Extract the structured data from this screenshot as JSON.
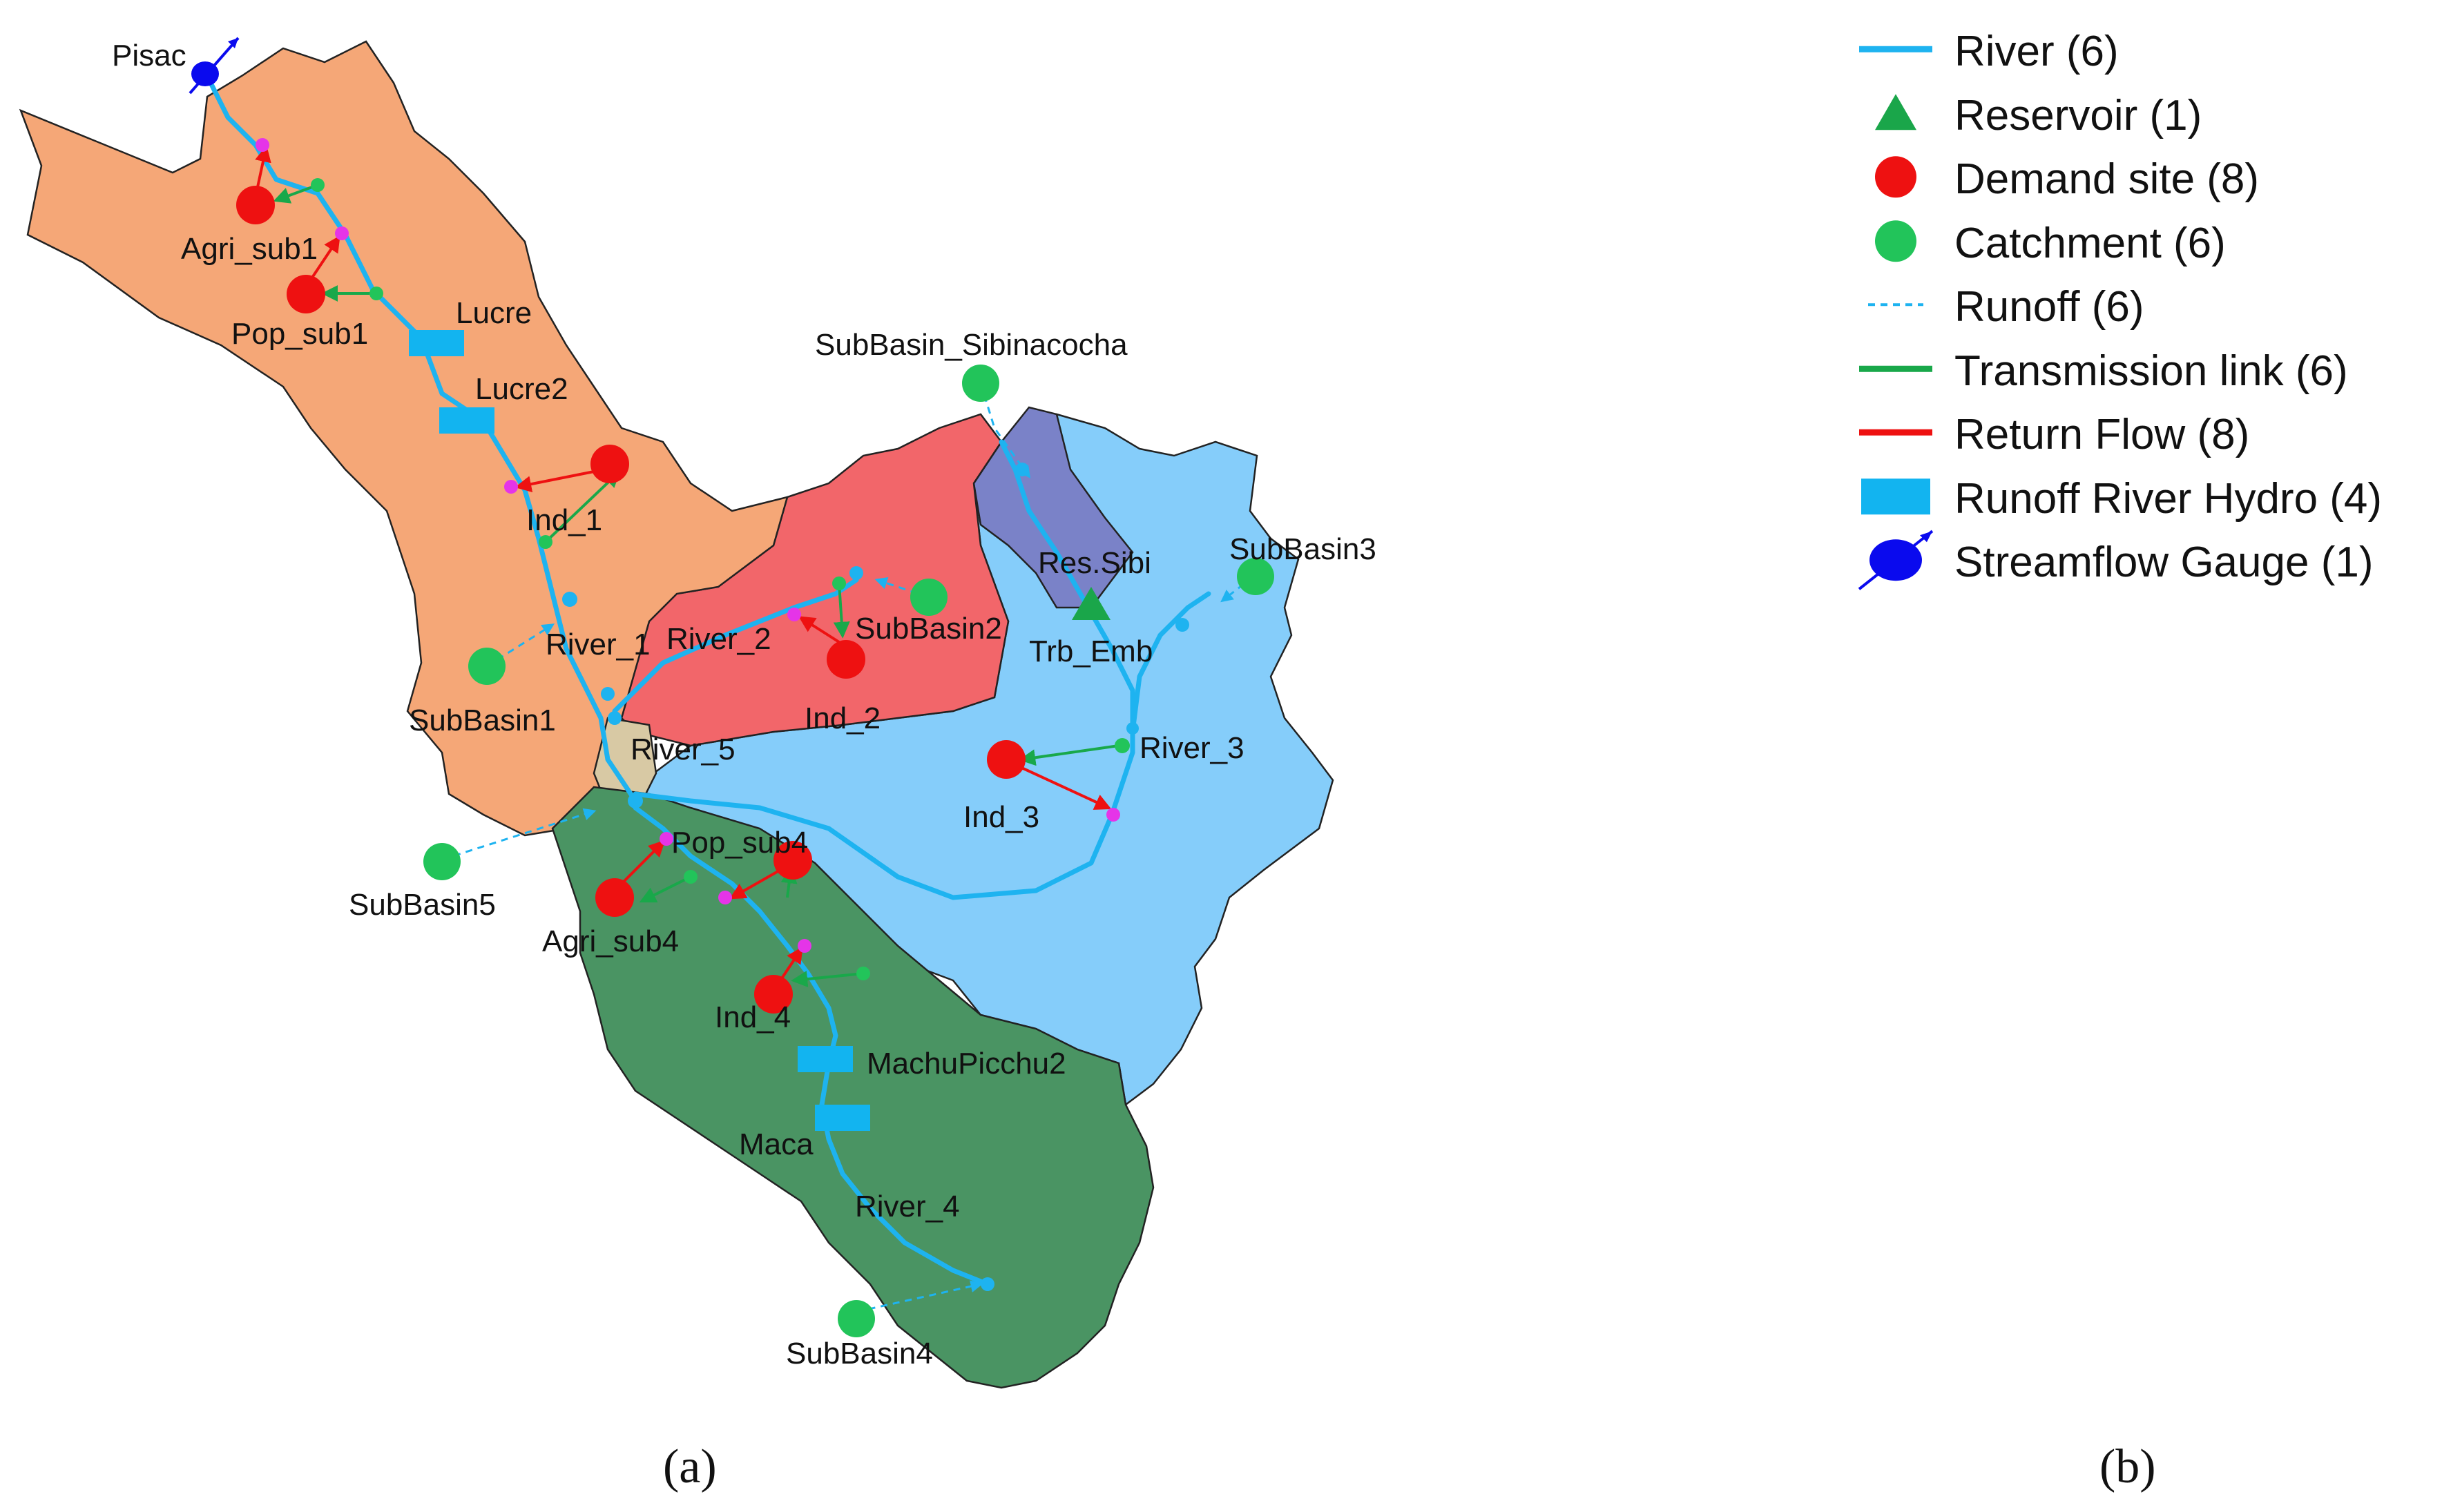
{
  "legend": [
    {
      "label": "River (6)",
      "icon": "river-line-icon",
      "color": "#1eb3f0"
    },
    {
      "label": "Reservoir (1)",
      "icon": "reservoir-triangle-icon",
      "color": "#1aa64a"
    },
    {
      "label": "Demand site (8)",
      "icon": "demand-site-circle-icon",
      "color": "#ee1111"
    },
    {
      "label": "Catchment (6)",
      "icon": "catchment-circle-icon",
      "color": "#22c45a"
    },
    {
      "label": "Runoff (6)",
      "icon": "runoff-dashed-line-icon",
      "color": "#1eb3f0"
    },
    {
      "label": "Transmission link (6)",
      "icon": "transmission-link-line-icon",
      "color": "#19a84a"
    },
    {
      "label": "Return Flow (8)",
      "icon": "return-flow-line-icon",
      "color": "#ee1111"
    },
    {
      "label": "Runoff River Hydro (4)",
      "icon": "hydro-rectangle-icon",
      "color": "#12b4f0"
    },
    {
      "label": "Streamflow Gauge (1)",
      "icon": "streamflow-gauge-icon",
      "color": "#0a0aee"
    }
  ],
  "map": {
    "subbasin_colors": {
      "subbasin1": "#f5a777",
      "subbasin2": "#f2666a",
      "subbasin3": "#85cdfa",
      "subbasin4": "#4a9463",
      "subbasin5": "#d8c9a4",
      "sibinacocha": "#7a82c8"
    },
    "labels": {
      "pisac": "Pisac",
      "agri_sub1": "Agri_sub1",
      "pop_sub1": "Pop_sub1",
      "lucre": "Lucre",
      "lucre2": "Lucre2",
      "ind_1": "Ind_1",
      "river_1": "River_1",
      "subbasin1": "SubBasin1",
      "subbasin_sibinacocha": "SubBasin_Sibinacocha",
      "res_sibi": "Res.Sibi",
      "subbasin3": "SubBasin3",
      "river_2": "River_2",
      "subbasin2": "SubBasin2",
      "trb_emb": "Trb_Emb",
      "ind_2": "Ind_2",
      "river_5": "River_5",
      "river_3": "River_3",
      "ind_3": "Ind_3",
      "subbasin5": "SubBasin5",
      "pop_sub4": "Pop_sub4",
      "agri_sub4": "Agri_sub4",
      "ind_4": "Ind_4",
      "machupicchu2": "MachuPicchu2",
      "maca": "Maca",
      "river_4": "River_4",
      "subbasin4": "SubBasin4"
    }
  },
  "panel_labels": {
    "a": "(a)",
    "b": "(b)"
  }
}
